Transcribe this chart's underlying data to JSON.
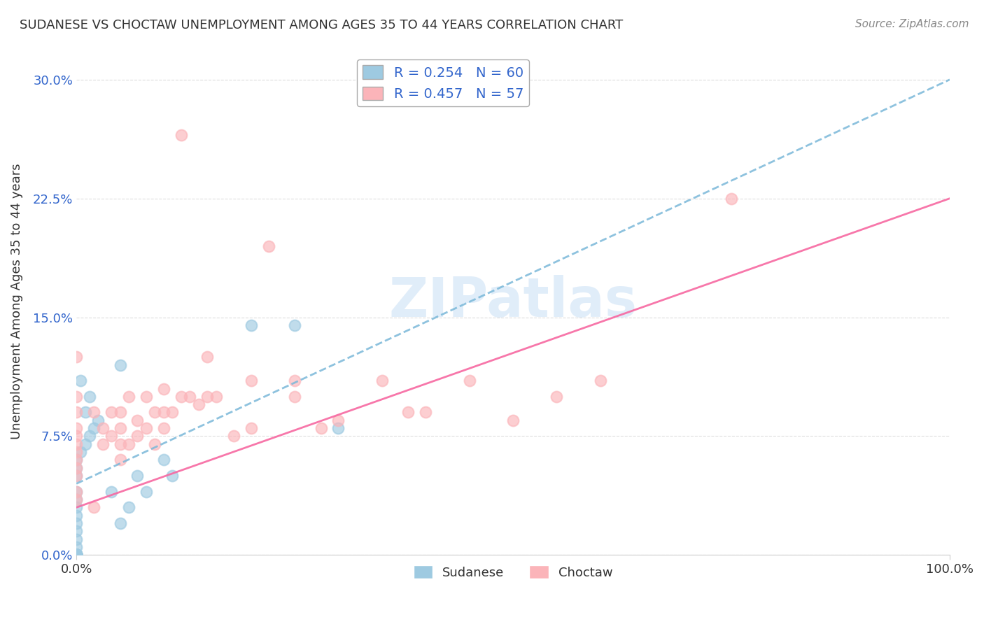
{
  "title": "SUDANESE VS CHOCTAW UNEMPLOYMENT AMONG AGES 35 TO 44 YEARS CORRELATION CHART",
  "source": "Source: ZipAtlas.com",
  "ylabel": "Unemployment Among Ages 35 to 44 years",
  "xlim": [
    0,
    100
  ],
  "ylim": [
    0,
    32
  ],
  "yticks": [
    0,
    7.5,
    15.0,
    22.5,
    30.0
  ],
  "ytick_labels": [
    "0.0%",
    "7.5%",
    "15.0%",
    "22.5%",
    "30.0%"
  ],
  "xtick_labels": [
    "0.0%",
    "100.0%"
  ],
  "sudanese_R": 0.254,
  "sudanese_N": 60,
  "choctaw_R": 0.457,
  "choctaw_N": 57,
  "sudanese_color": "#9ecae1",
  "choctaw_color": "#fbb4b9",
  "sudanese_line_color": "#7ab8d9",
  "choctaw_line_color": "#f768a1",
  "watermark_color": "#c8dff5",
  "background_color": "#ffffff",
  "grid_color": "#dddddd",
  "sudanese_x": [
    0.0,
    0.0,
    0.0,
    0.0,
    0.0,
    0.0,
    0.0,
    0.0,
    0.0,
    0.0,
    0.0,
    0.0,
    0.0,
    0.0,
    0.0,
    0.0,
    0.0,
    0.0,
    0.0,
    0.0,
    0.0,
    0.0,
    0.0,
    0.0,
    0.0,
    0.0,
    0.0,
    0.0,
    0.0,
    0.0,
    0.0,
    0.5,
    1.0,
    1.5,
    2.0,
    2.5,
    1.0,
    1.5,
    0.5,
    0.0,
    0.0,
    0.0,
    0.0,
    0.0,
    0.0,
    0.0,
    0.0,
    0.0,
    0.0,
    5.0,
    6.0,
    4.0,
    7.0,
    10.0,
    11.0,
    20.0,
    25.0,
    30.0,
    5.0,
    8.0
  ],
  "sudanese_y": [
    0.0,
    0.0,
    0.0,
    0.0,
    0.0,
    0.0,
    0.0,
    0.0,
    0.0,
    0.0,
    0.0,
    0.0,
    0.0,
    0.0,
    0.0,
    0.0,
    0.0,
    0.0,
    0.0,
    0.0,
    0.5,
    1.0,
    1.5,
    2.0,
    2.5,
    3.0,
    3.5,
    4.0,
    5.0,
    5.5,
    6.0,
    6.5,
    7.0,
    7.5,
    8.0,
    8.5,
    9.0,
    10.0,
    11.0,
    0.0,
    0.0,
    0.0,
    0.0,
    0.0,
    0.0,
    0.0,
    0.0,
    0.0,
    0.0,
    2.0,
    3.0,
    4.0,
    5.0,
    6.0,
    5.0,
    14.5,
    14.5,
    8.0,
    12.0,
    4.0
  ],
  "choctaw_x": [
    0.0,
    0.0,
    0.0,
    0.0,
    0.0,
    0.0,
    0.0,
    0.0,
    0.0,
    0.0,
    0.0,
    0.0,
    2.0,
    2.0,
    3.0,
    3.0,
    4.0,
    4.0,
    5.0,
    5.0,
    5.0,
    5.0,
    6.0,
    6.0,
    7.0,
    7.0,
    8.0,
    8.0,
    9.0,
    9.0,
    10.0,
    10.0,
    10.0,
    11.0,
    12.0,
    12.0,
    13.0,
    14.0,
    15.0,
    15.0,
    16.0,
    18.0,
    20.0,
    20.0,
    22.0,
    25.0,
    25.0,
    28.0,
    30.0,
    35.0,
    38.0,
    40.0,
    45.0,
    50.0,
    55.0,
    60.0,
    75.0
  ],
  "choctaw_y": [
    3.5,
    4.0,
    5.0,
    5.5,
    6.0,
    6.5,
    7.0,
    7.5,
    8.0,
    9.0,
    10.0,
    12.5,
    3.0,
    9.0,
    7.0,
    8.0,
    7.5,
    9.0,
    6.0,
    7.0,
    8.0,
    9.0,
    7.0,
    10.0,
    7.5,
    8.5,
    8.0,
    10.0,
    7.0,
    9.0,
    8.0,
    9.0,
    10.5,
    9.0,
    10.0,
    26.5,
    10.0,
    9.5,
    10.0,
    12.5,
    10.0,
    7.5,
    8.0,
    11.0,
    19.5,
    10.0,
    11.0,
    8.0,
    8.5,
    11.0,
    9.0,
    9.0,
    11.0,
    8.5,
    10.0,
    11.0,
    22.5
  ],
  "sud_line_x": [
    0,
    100
  ],
  "sud_line_y": [
    4.5,
    30.0
  ],
  "cho_line_x": [
    0,
    100
  ],
  "cho_line_y": [
    3.0,
    22.5
  ]
}
